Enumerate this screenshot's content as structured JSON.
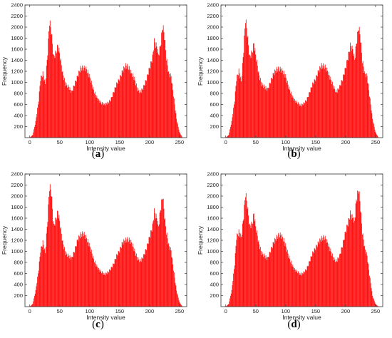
{
  "chart_data": [
    {
      "type": "bar",
      "caption_open": "(",
      "caption_letter": "a",
      "caption_close": ")",
      "xlabel": "Intensity value",
      "ylabel": "Frequency",
      "xlim": [
        -8,
        262
      ],
      "ylim": [
        0,
        2400
      ],
      "xticks": [
        "0",
        "50",
        "100",
        "150",
        "200",
        "250"
      ],
      "yticks": [
        "200",
        "400",
        "600",
        "800",
        "1000",
        "1200",
        "1400",
        "1600",
        "1800",
        "2000",
        "2200",
        "2400"
      ],
      "grid": false,
      "color": "#ff0000",
      "profile": [
        [
          0,
          0
        ],
        [
          5,
          50
        ],
        [
          10,
          300
        ],
        [
          15,
          700
        ],
        [
          18,
          1100
        ],
        [
          22,
          1200
        ],
        [
          26,
          1000
        ],
        [
          30,
          1600
        ],
        [
          33,
          2180
        ],
        [
          36,
          2000
        ],
        [
          40,
          1500
        ],
        [
          44,
          1600
        ],
        [
          47,
          1720
        ],
        [
          50,
          1580
        ],
        [
          55,
          1200
        ],
        [
          60,
          1000
        ],
        [
          65,
          950
        ],
        [
          70,
          850
        ],
        [
          75,
          1000
        ],
        [
          80,
          1150
        ],
        [
          85,
          1300
        ],
        [
          90,
          1310
        ],
        [
          95,
          1280
        ],
        [
          100,
          1150
        ],
        [
          105,
          950
        ],
        [
          110,
          800
        ],
        [
          115,
          700
        ],
        [
          120,
          650
        ],
        [
          125,
          620
        ],
        [
          130,
          650
        ],
        [
          135,
          700
        ],
        [
          140,
          850
        ],
        [
          145,
          1000
        ],
        [
          150,
          1100
        ],
        [
          155,
          1250
        ],
        [
          160,
          1350
        ],
        [
          165,
          1320
        ],
        [
          170,
          1200
        ],
        [
          175,
          1100
        ],
        [
          180,
          900
        ],
        [
          185,
          850
        ],
        [
          190,
          950
        ],
        [
          195,
          1100
        ],
        [
          200,
          1300
        ],
        [
          205,
          1500
        ],
        [
          208,
          1800
        ],
        [
          212,
          1700
        ],
        [
          215,
          1550
        ],
        [
          218,
          1700
        ],
        [
          222,
          2100
        ],
        [
          225,
          1900
        ],
        [
          228,
          1500
        ],
        [
          232,
          1200
        ],
        [
          236,
          1150
        ],
        [
          240,
          800
        ],
        [
          245,
          350
        ],
        [
          250,
          100
        ],
        [
          255,
          0
        ]
      ]
    },
    {
      "type": "bar",
      "caption_open": "(",
      "caption_letter": "b",
      "caption_close": ")",
      "xlabel": "Intensity value",
      "ylabel": "Frequency",
      "xlim": [
        -8,
        262
      ],
      "ylim": [
        0,
        2400
      ],
      "xticks": [
        "0",
        "50",
        "100",
        "150",
        "200",
        "250"
      ],
      "yticks": [
        "200",
        "400",
        "600",
        "800",
        "1000",
        "1200",
        "1400",
        "1600",
        "1800",
        "2000",
        "2200",
        "2400"
      ],
      "grid": false,
      "color": "#ff0000",
      "profile": [
        [
          0,
          0
        ],
        [
          5,
          50
        ],
        [
          10,
          300
        ],
        [
          15,
          700
        ],
        [
          18,
          1100
        ],
        [
          22,
          1250
        ],
        [
          26,
          1050
        ],
        [
          30,
          1650
        ],
        [
          33,
          2230
        ],
        [
          36,
          1950
        ],
        [
          40,
          1500
        ],
        [
          44,
          1600
        ],
        [
          47,
          1760
        ],
        [
          50,
          1550
        ],
        [
          55,
          1200
        ],
        [
          60,
          1000
        ],
        [
          65,
          950
        ],
        [
          70,
          900
        ],
        [
          75,
          1050
        ],
        [
          80,
          1200
        ],
        [
          85,
          1280
        ],
        [
          90,
          1290
        ],
        [
          95,
          1250
        ],
        [
          100,
          1150
        ],
        [
          105,
          950
        ],
        [
          110,
          800
        ],
        [
          115,
          700
        ],
        [
          120,
          650
        ],
        [
          125,
          600
        ],
        [
          130,
          640
        ],
        [
          135,
          700
        ],
        [
          140,
          850
        ],
        [
          145,
          1000
        ],
        [
          150,
          1100
        ],
        [
          155,
          1250
        ],
        [
          160,
          1350
        ],
        [
          165,
          1340
        ],
        [
          170,
          1250
        ],
        [
          175,
          1100
        ],
        [
          180,
          950
        ],
        [
          185,
          850
        ],
        [
          190,
          950
        ],
        [
          195,
          1100
        ],
        [
          200,
          1300
        ],
        [
          205,
          1550
        ],
        [
          208,
          1720
        ],
        [
          212,
          1650
        ],
        [
          215,
          1450
        ],
        [
          218,
          1750
        ],
        [
          222,
          2080
        ],
        [
          225,
          1850
        ],
        [
          228,
          1450
        ],
        [
          232,
          1200
        ],
        [
          236,
          1150
        ],
        [
          240,
          800
        ],
        [
          245,
          350
        ],
        [
          250,
          100
        ],
        [
          255,
          0
        ]
      ]
    },
    {
      "type": "bar",
      "caption_open": "(",
      "caption_letter": "c",
      "caption_close": ")",
      "xlabel": "Intensity value",
      "ylabel": "Frequency",
      "xlim": [
        -8,
        262
      ],
      "ylim": [
        0,
        2400
      ],
      "xticks": [
        "0",
        "50",
        "100",
        "150",
        "200",
        "250"
      ],
      "yticks": [
        "200",
        "400",
        "600",
        "800",
        "1000",
        "1200",
        "1400",
        "1600",
        "1800",
        "2000",
        "2200",
        "2400"
      ],
      "grid": false,
      "color": "#ff0000",
      "profile": [
        [
          0,
          0
        ],
        [
          5,
          50
        ],
        [
          10,
          300
        ],
        [
          15,
          700
        ],
        [
          18,
          1050
        ],
        [
          22,
          1200
        ],
        [
          26,
          1000
        ],
        [
          30,
          1650
        ],
        [
          33,
          2250
        ],
        [
          36,
          2150
        ],
        [
          40,
          1500
        ],
        [
          44,
          1650
        ],
        [
          47,
          1780
        ],
        [
          50,
          1600
        ],
        [
          55,
          1200
        ],
        [
          60,
          1000
        ],
        [
          65,
          950
        ],
        [
          70,
          900
        ],
        [
          75,
          1050
        ],
        [
          80,
          1250
        ],
        [
          85,
          1350
        ],
        [
          90,
          1370
        ],
        [
          95,
          1280
        ],
        [
          100,
          1150
        ],
        [
          105,
          950
        ],
        [
          110,
          800
        ],
        [
          115,
          700
        ],
        [
          120,
          650
        ],
        [
          125,
          600
        ],
        [
          130,
          640
        ],
        [
          135,
          700
        ],
        [
          140,
          800
        ],
        [
          145,
          950
        ],
        [
          150,
          1050
        ],
        [
          155,
          1200
        ],
        [
          160,
          1250
        ],
        [
          165,
          1260
        ],
        [
          170,
          1200
        ],
        [
          175,
          1050
        ],
        [
          180,
          900
        ],
        [
          185,
          850
        ],
        [
          190,
          950
        ],
        [
          195,
          1100
        ],
        [
          200,
          1300
        ],
        [
          205,
          1500
        ],
        [
          208,
          1780
        ],
        [
          212,
          1650
        ],
        [
          215,
          1500
        ],
        [
          218,
          1800
        ],
        [
          222,
          2080
        ],
        [
          225,
          1700
        ],
        [
          228,
          1400
        ],
        [
          232,
          1150
        ],
        [
          236,
          1050
        ],
        [
          240,
          700
        ],
        [
          245,
          300
        ],
        [
          250,
          80
        ],
        [
          255,
          0
        ]
      ]
    },
    {
      "type": "bar",
      "caption_open": "(",
      "caption_letter": "d",
      "caption_close": ")",
      "xlabel": "Intensity value",
      "ylabel": "Frequency",
      "xlim": [
        -8,
        262
      ],
      "ylim": [
        0,
        2400
      ],
      "xticks": [
        "0",
        "50",
        "100",
        "150",
        "200",
        "250"
      ],
      "yticks": [
        "200",
        "400",
        "600",
        "800",
        "1000",
        "1200",
        "1400",
        "1600",
        "1800",
        "2000",
        "2200",
        "2400"
      ],
      "grid": false,
      "color": "#ff0000",
      "profile": [
        [
          0,
          0
        ],
        [
          5,
          50
        ],
        [
          10,
          300
        ],
        [
          15,
          800
        ],
        [
          18,
          1300
        ],
        [
          22,
          1400
        ],
        [
          26,
          1300
        ],
        [
          30,
          1700
        ],
        [
          33,
          2130
        ],
        [
          36,
          1900
        ],
        [
          40,
          1500
        ],
        [
          44,
          1550
        ],
        [
          47,
          1740
        ],
        [
          50,
          1500
        ],
        [
          55,
          1200
        ],
        [
          60,
          1000
        ],
        [
          65,
          950
        ],
        [
          70,
          900
        ],
        [
          75,
          1050
        ],
        [
          80,
          1200
        ],
        [
          85,
          1300
        ],
        [
          90,
          1350
        ],
        [
          95,
          1300
        ],
        [
          100,
          1150
        ],
        [
          105,
          950
        ],
        [
          110,
          800
        ],
        [
          115,
          700
        ],
        [
          120,
          650
        ],
        [
          125,
          600
        ],
        [
          130,
          640
        ],
        [
          135,
          700
        ],
        [
          140,
          850
        ],
        [
          145,
          1000
        ],
        [
          150,
          1100
        ],
        [
          155,
          1200
        ],
        [
          160,
          1280
        ],
        [
          165,
          1300
        ],
        [
          170,
          1200
        ],
        [
          175,
          1050
        ],
        [
          180,
          900
        ],
        [
          185,
          850
        ],
        [
          190,
          950
        ],
        [
          195,
          1150
        ],
        [
          200,
          1400
        ],
        [
          205,
          1600
        ],
        [
          208,
          1740
        ],
        [
          212,
          1650
        ],
        [
          215,
          1600
        ],
        [
          218,
          2000
        ],
        [
          222,
          2200
        ],
        [
          225,
          1850
        ],
        [
          228,
          1400
        ],
        [
          232,
          1100
        ],
        [
          236,
          950
        ],
        [
          240,
          600
        ],
        [
          245,
          200
        ],
        [
          250,
          50
        ],
        [
          255,
          0
        ]
      ]
    }
  ]
}
